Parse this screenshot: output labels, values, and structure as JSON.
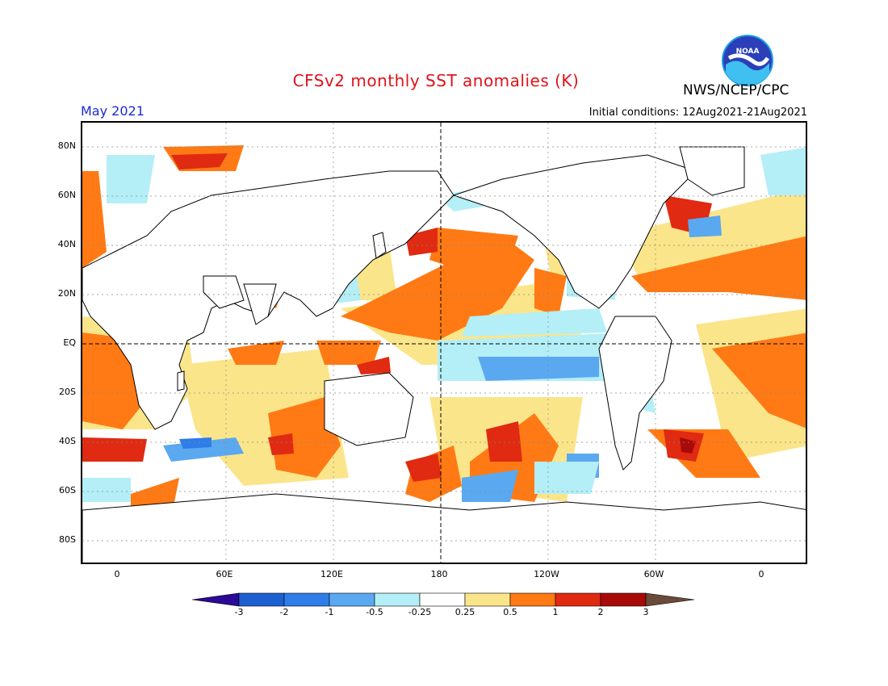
{
  "header": {
    "title": "CFSv2 monthly SST anomalies (K)",
    "agency": "NWS/NCEP/CPC",
    "logo_text": "NOAA",
    "period": "May 2021",
    "initial_conditions": "Initial conditions: 12Aug2021-21Aug2021"
  },
  "axes": {
    "lat_labels": [
      "80N",
      "60N",
      "40N",
      "20N",
      "EQ",
      "20S",
      "40S",
      "60S",
      "80S"
    ],
    "lon_labels": [
      "0",
      "60E",
      "120E",
      "180",
      "120W",
      "60W",
      "0"
    ]
  },
  "legend": {
    "ticks": [
      "-3",
      "-2",
      "-1",
      "-0.5",
      "-0.25",
      "0.25",
      "0.5",
      "1",
      "2",
      "3"
    ],
    "colors": [
      "#2a0a96",
      "#1c5fd0",
      "#2e7de8",
      "#5aa8f0",
      "#b4eef6",
      "#ffffff",
      "#fbe58a",
      "#ff7a14",
      "#e02a12",
      "#a80a0a",
      "#6b4a3a"
    ]
  },
  "colors": {
    "title": "#e0121a",
    "period": "#1a2bd8",
    "land_outline": "#000000"
  }
}
